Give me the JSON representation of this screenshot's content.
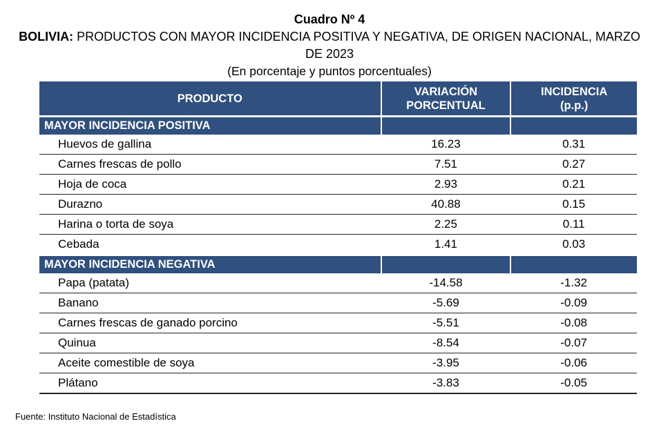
{
  "title": "Cuadro Nº 4",
  "subtitle_bold": "BOLIVIA:",
  "subtitle_rest": " PRODUCTOS CON MAYOR INCIDENCIA POSITIVA Y NEGATIVA, DE ORIGEN NACIONAL, MARZO DE 2023",
  "units": "(En porcentaje y puntos porcentuales)",
  "headers": {
    "product": "PRODUCTO",
    "variation_line1": "VARIACIÓN",
    "variation_line2": "PORCENTUAL",
    "incidence_line1": "INCIDENCIA",
    "incidence_line2": "(p.p.)"
  },
  "sections": [
    {
      "label": "MAYOR INCIDENCIA POSITIVA",
      "rows": [
        {
          "product": "Huevos de gallina",
          "variation": "16.23",
          "incidence": "0.31"
        },
        {
          "product": "Carnes frescas de pollo",
          "variation": "7.51",
          "incidence": "0.27"
        },
        {
          "product": "Hoja de coca",
          "variation": "2.93",
          "incidence": "0.21"
        },
        {
          "product": "Durazno",
          "variation": "40.88",
          "incidence": "0.15"
        },
        {
          "product": "Harina o torta de soya",
          "variation": "2.25",
          "incidence": "0.11"
        },
        {
          "product": "Cebada",
          "variation": "1.41",
          "incidence": "0.03"
        }
      ]
    },
    {
      "label": "MAYOR INCIDENCIA NEGATIVA",
      "rows": [
        {
          "product": "Papa (patata)",
          "variation": "-14.58",
          "incidence": "-1.32"
        },
        {
          "product": "Banano",
          "variation": "-5.69",
          "incidence": "-0.09"
        },
        {
          "product": "Carnes frescas de ganado porcino",
          "variation": "-5.51",
          "incidence": "-0.08"
        },
        {
          "product": "Quinua",
          "variation": "-8.54",
          "incidence": "-0.07"
        },
        {
          "product": "Aceite comestible de soya",
          "variation": "-3.95",
          "incidence": "-0.06"
        },
        {
          "product": "Plátano",
          "variation": "-3.83",
          "incidence": "-0.05"
        }
      ]
    }
  ],
  "source": "Fuente: Instituto Nacional de Estadística",
  "colors": {
    "header_bg": "#30507f",
    "header_text": "#ffffff"
  }
}
